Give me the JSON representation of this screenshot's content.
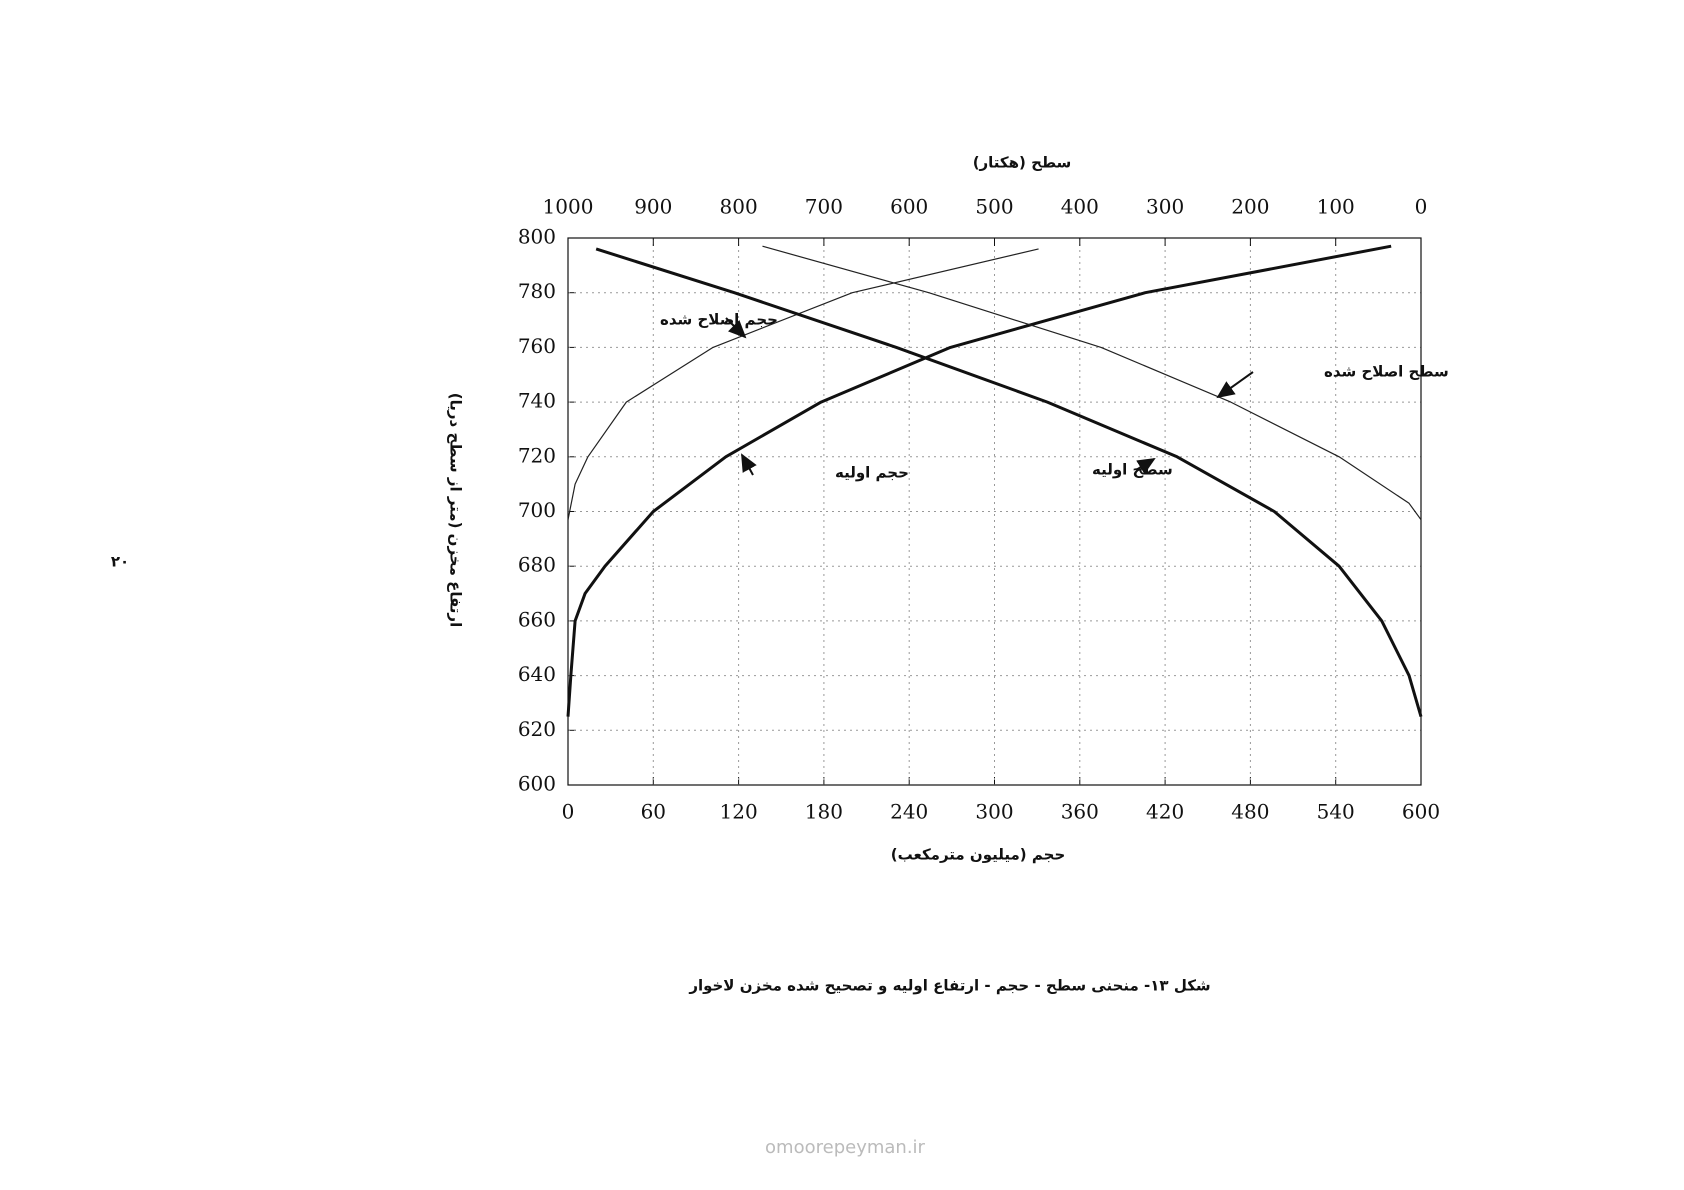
{
  "chart_data": {
    "type": "line",
    "title": "سطح (هکتار)",
    "x_label": "حجم (میلیون مترمکعب)",
    "y_label": "ارتفاع مخزن (متر از سطح دریا)",
    "caption": "شکل ۱۳- منحنی سطح - حجم - ارتفاع اولیه و تصحیح شده مخزن لاخوار",
    "page_number": "۲۰",
    "watermark": "omoorepeyman.ir",
    "xlim": [
      0,
      600
    ],
    "xticks": [
      0,
      60,
      120,
      180,
      240,
      300,
      360,
      420,
      480,
      540,
      600
    ],
    "x2lim": [
      1000,
      0
    ],
    "x2ticks": [
      1000,
      900,
      800,
      700,
      600,
      500,
      400,
      300,
      200,
      100,
      0
    ],
    "ylim": [
      600,
      800
    ],
    "yticks": [
      600,
      620,
      640,
      660,
      680,
      700,
      720,
      740,
      760,
      780,
      800
    ],
    "grid": true,
    "series": [
      {
        "name": "حجم اولیه",
        "color": "#111111",
        "x": [
          0,
          2,
          5,
          12,
          26,
          60,
          111,
          178,
          269,
          406,
          579
        ],
        "values": [
          625,
          640,
          660,
          670,
          680,
          700,
          720,
          740,
          760,
          780,
          797
        ]
      },
      {
        "name": "حجم اصلاح شده",
        "color": "#222222",
        "x": [
          0,
          5,
          14,
          41,
          102,
          200,
          331
        ],
        "values": [
          697,
          710,
          720,
          740,
          760,
          780,
          796
        ]
      },
      {
        "name": "سطح اولیه",
        "color": "#111111",
        "axis": "x2",
        "x": [
          967,
          805,
          615,
          438,
          286,
          172,
          96,
          46,
          14,
          0
        ],
        "values": [
          796,
          780,
          760,
          740,
          720,
          700,
          680,
          660,
          640,
          625
        ]
      },
      {
        "name": "سطح اصلاح شده",
        "color": "#222222",
        "axis": "x2",
        "x": [
          772,
          577,
          375,
          223,
          96,
          14,
          0
        ],
        "values": [
          797,
          780,
          760,
          740,
          720,
          703,
          697
        ]
      }
    ]
  }
}
